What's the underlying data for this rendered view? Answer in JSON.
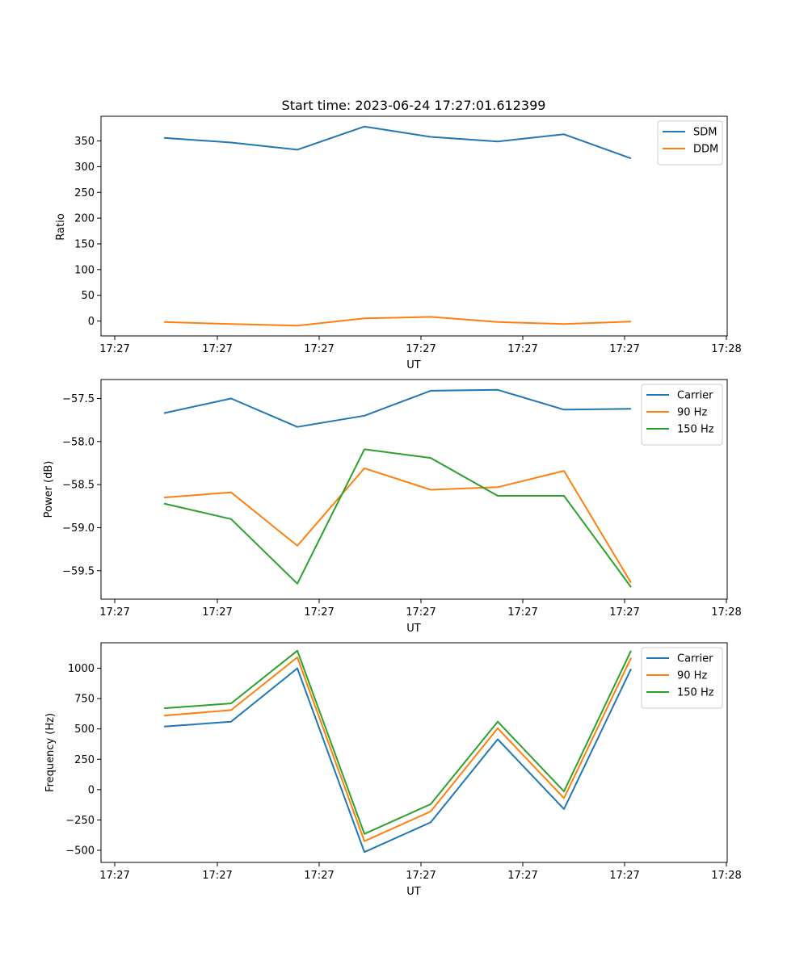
{
  "chart_data": [
    {
      "type": "line",
      "title": "Start time: 2023-06-24 17:27:01.612399",
      "xlabel": "UT",
      "ylabel": "Ratio",
      "x_tick_labels": [
        "17:27",
        "17:27",
        "17:27",
        "17:27",
        "17:27",
        "17:27",
        "17:28"
      ],
      "ylim": [
        -29,
        398
      ],
      "y_ticks": [
        0,
        50,
        100,
        150,
        200,
        250,
        300,
        350
      ],
      "grid": false,
      "legend": "top-right",
      "series": [
        {
          "name": "SDM",
          "color": "#1f77b4",
          "values": [
            356,
            347,
            333,
            378,
            358,
            349,
            363,
            316
          ]
        },
        {
          "name": "DDM",
          "color": "#ff7f0e",
          "values": [
            -2,
            -6,
            -9,
            5,
            8,
            -2,
            -6,
            -1
          ]
        }
      ]
    },
    {
      "type": "line",
      "title": "",
      "xlabel": "UT",
      "ylabel": "Power (dB)",
      "x_tick_labels": [
        "17:27",
        "17:27",
        "17:27",
        "17:27",
        "17:27",
        "17:27",
        "17:28"
      ],
      "ylim": [
        -59.83,
        -57.28
      ],
      "y_ticks": [
        -59.5,
        -59.0,
        -58.5,
        -58.0,
        -57.5
      ],
      "y_tick_labels": [
        "−59.5",
        "−59.0",
        "−58.5",
        "−58.0",
        "−57.5"
      ],
      "grid": false,
      "legend": "top-right",
      "series": [
        {
          "name": "Carrier",
          "color": "#1f77b4",
          "values": [
            -57.67,
            -57.5,
            -57.83,
            -57.7,
            -57.41,
            -57.4,
            -57.63,
            -57.62
          ]
        },
        {
          "name": "90 Hz",
          "color": "#ff7f0e",
          "values": [
            -58.65,
            -58.59,
            -59.21,
            -58.31,
            -58.56,
            -58.53,
            -58.34,
            -59.64
          ]
        },
        {
          "name": "150 Hz",
          "color": "#2ca02c",
          "values": [
            -58.72,
            -58.9,
            -59.65,
            -58.09,
            -58.19,
            -58.63,
            -58.63,
            -59.69
          ]
        }
      ]
    },
    {
      "type": "line",
      "title": "",
      "xlabel": "UT",
      "ylabel": "Frequency (Hz)",
      "x_tick_labels": [
        "17:27",
        "17:27",
        "17:27",
        "17:27",
        "17:27",
        "17:27",
        "17:28"
      ],
      "ylim": [
        -600,
        1210
      ],
      "y_ticks": [
        -500,
        -250,
        0,
        250,
        500,
        750,
        1000
      ],
      "y_tick_labels": [
        "−500",
        "−250",
        "0",
        "250",
        "500",
        "750",
        "1000"
      ],
      "grid": false,
      "legend": "top-right",
      "series": [
        {
          "name": "Carrier",
          "color": "#1f77b4",
          "values": [
            520,
            560,
            1000,
            -515,
            -270,
            415,
            -160,
            995
          ]
        },
        {
          "name": "90 Hz",
          "color": "#ff7f0e",
          "values": [
            610,
            655,
            1090,
            -425,
            -180,
            505,
            -70,
            1085
          ]
        },
        {
          "name": "150 Hz",
          "color": "#2ca02c",
          "values": [
            670,
            710,
            1145,
            -365,
            -120,
            560,
            -15,
            1145
          ]
        }
      ]
    }
  ]
}
